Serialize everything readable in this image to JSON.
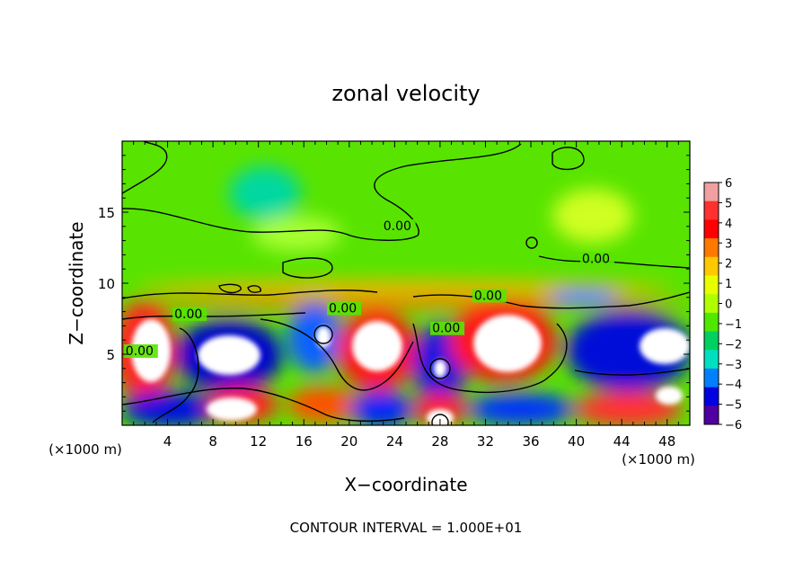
{
  "chart_data": {
    "type": "heatmap",
    "title": "zonal velocity",
    "xlabel": "X−coordinate",
    "ylabel": "Z−coordinate",
    "x_unit": "(×1000 m)",
    "footer": "CONTOUR INTERVAL = 1.000E+01",
    "xlim": [
      0,
      50
    ],
    "ylim": [
      0,
      20
    ],
    "x_ticks": [
      "4",
      "8",
      "12",
      "16",
      "20",
      "24",
      "28",
      "32",
      "36",
      "40",
      "44",
      "48"
    ],
    "y_ticks": [
      "5",
      "10",
      "15"
    ],
    "colorbar": {
      "min": -6,
      "max": 6,
      "labels": [
        "6",
        "5",
        "4",
        "3",
        "2",
        "1",
        "0",
        "−1",
        "−2",
        "−3",
        "−4",
        "−5",
        "−6"
      ],
      "colors": [
        "#f0a0a0",
        "#ff3030",
        "#ff0000",
        "#ff7800",
        "#ffc800",
        "#e8ff00",
        "#b0ff00",
        "#50e800",
        "#00d060",
        "#00e0c0",
        "#0080ff",
        "#0000e0",
        "#5000a0"
      ]
    },
    "contour_labels": [
      {
        "text": "0.00",
        "x": 23,
        "z": 13.8
      },
      {
        "text": "0.00",
        "x": 40.5,
        "z": 11.5
      },
      {
        "text": "0.00",
        "x": 31,
        "z": 8.9
      },
      {
        "text": "0.00",
        "x": 18.2,
        "z": 8.0
      },
      {
        "text": "0.00",
        "x": 4.6,
        "z": 7.6
      },
      {
        "text": "0.00",
        "x": 27.3,
        "z": 6.6
      },
      {
        "text": "0.00",
        "x": 0.3,
        "z": 5.0
      }
    ]
  }
}
